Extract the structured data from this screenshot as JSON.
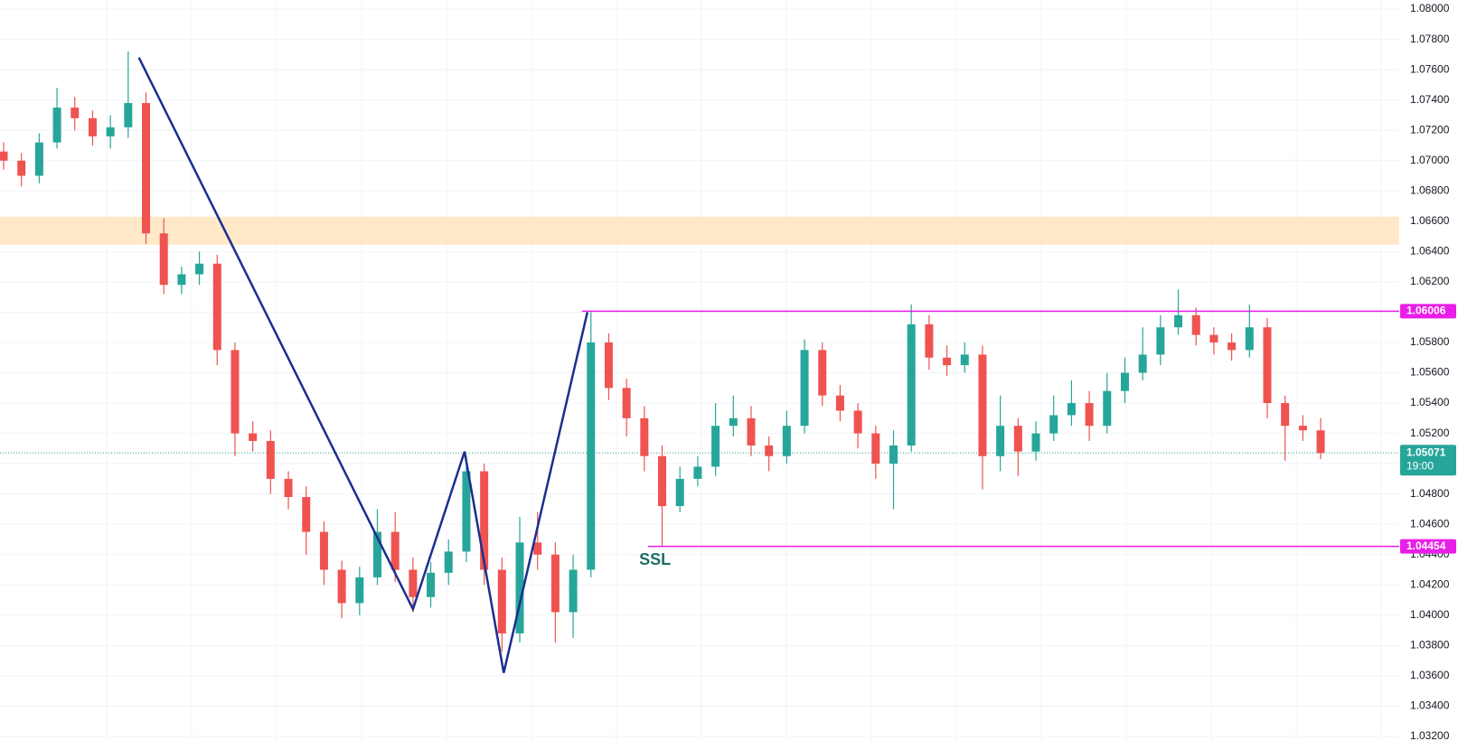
{
  "chart_data": {
    "type": "candlestick",
    "up_color": "#26a69a",
    "down_color": "#ef5350",
    "grid": true,
    "ylim": [
      1.0317,
      1.0806
    ],
    "yticks": [
      {
        "value": 1.08,
        "label": "1.08000"
      },
      {
        "value": 1.078,
        "label": "1.07800"
      },
      {
        "value": 1.076,
        "label": "1.07600"
      },
      {
        "value": 1.074,
        "label": "1.07400"
      },
      {
        "value": 1.072,
        "label": "1.07200"
      },
      {
        "value": 1.07,
        "label": "1.07000"
      },
      {
        "value": 1.068,
        "label": "1.06800"
      },
      {
        "value": 1.066,
        "label": "1.06600"
      },
      {
        "value": 1.064,
        "label": "1.06400"
      },
      {
        "value": 1.062,
        "label": "1.06200"
      },
      {
        "value": 1.06,
        "label": "1.06000"
      },
      {
        "value": 1.058,
        "label": "1.05800"
      },
      {
        "value": 1.056,
        "label": "1.05600"
      },
      {
        "value": 1.054,
        "label": "1.05400"
      },
      {
        "value": 1.052,
        "label": "1.05200"
      },
      {
        "value": 1.05,
        "label": "1.05000"
      },
      {
        "value": 1.048,
        "label": "1.04800"
      },
      {
        "value": 1.046,
        "label": "1.04600"
      },
      {
        "value": 1.044,
        "label": "1.04400"
      },
      {
        "value": 1.042,
        "label": "1.04200"
      },
      {
        "value": 1.04,
        "label": "1.04000"
      },
      {
        "value": 1.038,
        "label": "1.03800"
      },
      {
        "value": 1.036,
        "label": "1.03600"
      },
      {
        "value": 1.034,
        "label": "1.03400"
      },
      {
        "value": 1.032,
        "label": "1.03200"
      }
    ],
    "series": {
      "open": [
        1.0706,
        1.07,
        1.069,
        1.0712,
        1.0735,
        1.0728,
        1.0716,
        1.0722,
        1.0738,
        1.0652,
        1.0618,
        1.0625,
        1.0632,
        1.0575,
        1.052,
        1.0515,
        1.049,
        1.0478,
        1.0455,
        1.043,
        1.0408,
        1.0425,
        1.0455,
        1.043,
        1.0412,
        1.0428,
        1.0442,
        1.0495,
        1.043,
        1.0388,
        1.0448,
        1.044,
        1.0402,
        1.043,
        1.058,
        1.055,
        1.053,
        1.0505,
        1.0472,
        1.049,
        1.0498,
        1.0525,
        1.053,
        1.0512,
        1.0505,
        1.0525,
        1.0575,
        1.0545,
        1.0535,
        1.052,
        1.05,
        1.0512,
        1.0592,
        1.057,
        1.0565,
        1.0572,
        1.0505,
        1.0525,
        1.0508,
        1.052,
        1.0532,
        1.054,
        1.0525,
        1.0548,
        1.056,
        1.0572,
        1.059,
        1.0598,
        1.0585,
        1.058,
        1.0575,
        1.059,
        1.054,
        1.0525,
        1.0522
      ],
      "high": [
        1.0712,
        1.0705,
        1.0718,
        1.0748,
        1.0742,
        1.0733,
        1.073,
        1.0772,
        1.0745,
        1.0662,
        1.063,
        1.064,
        1.0638,
        1.058,
        1.0528,
        1.0522,
        1.0495,
        1.0485,
        1.0462,
        1.0436,
        1.0432,
        1.047,
        1.0468,
        1.0438,
        1.0435,
        1.045,
        1.0505,
        1.05,
        1.0438,
        1.0465,
        1.0468,
        1.0448,
        1.044,
        1.06,
        1.0586,
        1.0556,
        1.0538,
        1.0512,
        1.0498,
        1.0505,
        1.054,
        1.0545,
        1.0538,
        1.0518,
        1.0535,
        1.0582,
        1.058,
        1.0552,
        1.054,
        1.0525,
        1.0522,
        1.0605,
        1.0598,
        1.0578,
        1.058,
        1.0578,
        1.0545,
        1.053,
        1.0528,
        1.0545,
        1.0555,
        1.0548,
        1.056,
        1.057,
        1.059,
        1.0598,
        1.0615,
        1.0603,
        1.059,
        1.0586,
        1.0605,
        1.0596,
        1.0545,
        1.0532,
        1.053
      ],
      "low": [
        1.0694,
        1.0683,
        1.0685,
        1.0708,
        1.072,
        1.071,
        1.0708,
        1.0715,
        1.0645,
        1.0612,
        1.0612,
        1.0618,
        1.0565,
        1.0505,
        1.0508,
        1.048,
        1.047,
        1.044,
        1.042,
        1.0398,
        1.04,
        1.042,
        1.0422,
        1.0402,
        1.0405,
        1.042,
        1.0435,
        1.042,
        1.0376,
        1.0382,
        1.043,
        1.0382,
        1.0385,
        1.0425,
        1.0542,
        1.0518,
        1.0495,
        1.0445,
        1.0468,
        1.0485,
        1.0492,
        1.0518,
        1.0505,
        1.0495,
        1.05,
        1.052,
        1.0538,
        1.0528,
        1.051,
        1.049,
        1.047,
        1.0508,
        1.0562,
        1.0558,
        1.056,
        1.0483,
        1.0495,
        1.0492,
        1.0502,
        1.0515,
        1.0525,
        1.0515,
        1.052,
        1.054,
        1.0555,
        1.0565,
        1.0585,
        1.0578,
        1.0572,
        1.0568,
        1.057,
        1.053,
        1.0502,
        1.0515,
        1.0503
      ],
      "close": [
        1.07,
        1.069,
        1.0712,
        1.0735,
        1.0728,
        1.0716,
        1.0722,
        1.0738,
        1.0652,
        1.0618,
        1.0625,
        1.0632,
        1.0575,
        1.052,
        1.0515,
        1.049,
        1.0478,
        1.0455,
        1.043,
        1.0408,
        1.0425,
        1.0455,
        1.043,
        1.0412,
        1.0428,
        1.0442,
        1.0495,
        1.043,
        1.0388,
        1.0448,
        1.044,
        1.0402,
        1.043,
        1.058,
        1.055,
        1.053,
        1.0505,
        1.0472,
        1.049,
        1.0498,
        1.0525,
        1.053,
        1.0512,
        1.0505,
        1.0525,
        1.0575,
        1.0545,
        1.0535,
        1.052,
        1.05,
        1.0512,
        1.0592,
        1.057,
        1.0565,
        1.0572,
        1.0505,
        1.0525,
        1.0508,
        1.052,
        1.0532,
        1.054,
        1.0525,
        1.0548,
        1.056,
        1.0572,
        1.059,
        1.0598,
        1.0585,
        1.058,
        1.0575,
        1.059,
        1.054,
        1.0525,
        1.0522,
        1.0507
      ]
    },
    "zones": [
      {
        "low": 1.06445,
        "high": 1.0663,
        "color": "#ffe0b2"
      }
    ],
    "zigzag": {
      "color": "#1a2f8f",
      "x": [
        7.6,
        23.0,
        25.9,
        28.1,
        32.8
      ],
      "y": [
        1.0768,
        1.0404,
        1.0508,
        1.0362,
        1.06
      ]
    },
    "levels": [
      {
        "value": 1.06006,
        "start_x": 32.5,
        "color": "#e91ee8"
      },
      {
        "value": 1.04454,
        "start_x": 36.2,
        "color": "#e91ee8"
      }
    ],
    "current_price": {
      "value": 1.05071,
      "time": "19:00",
      "color": "#26a69a"
    },
    "annotations": [
      {
        "text": "SSL",
        "x": 36.6,
        "y": 1.0436,
        "color": "#1b6e63"
      }
    ]
  }
}
